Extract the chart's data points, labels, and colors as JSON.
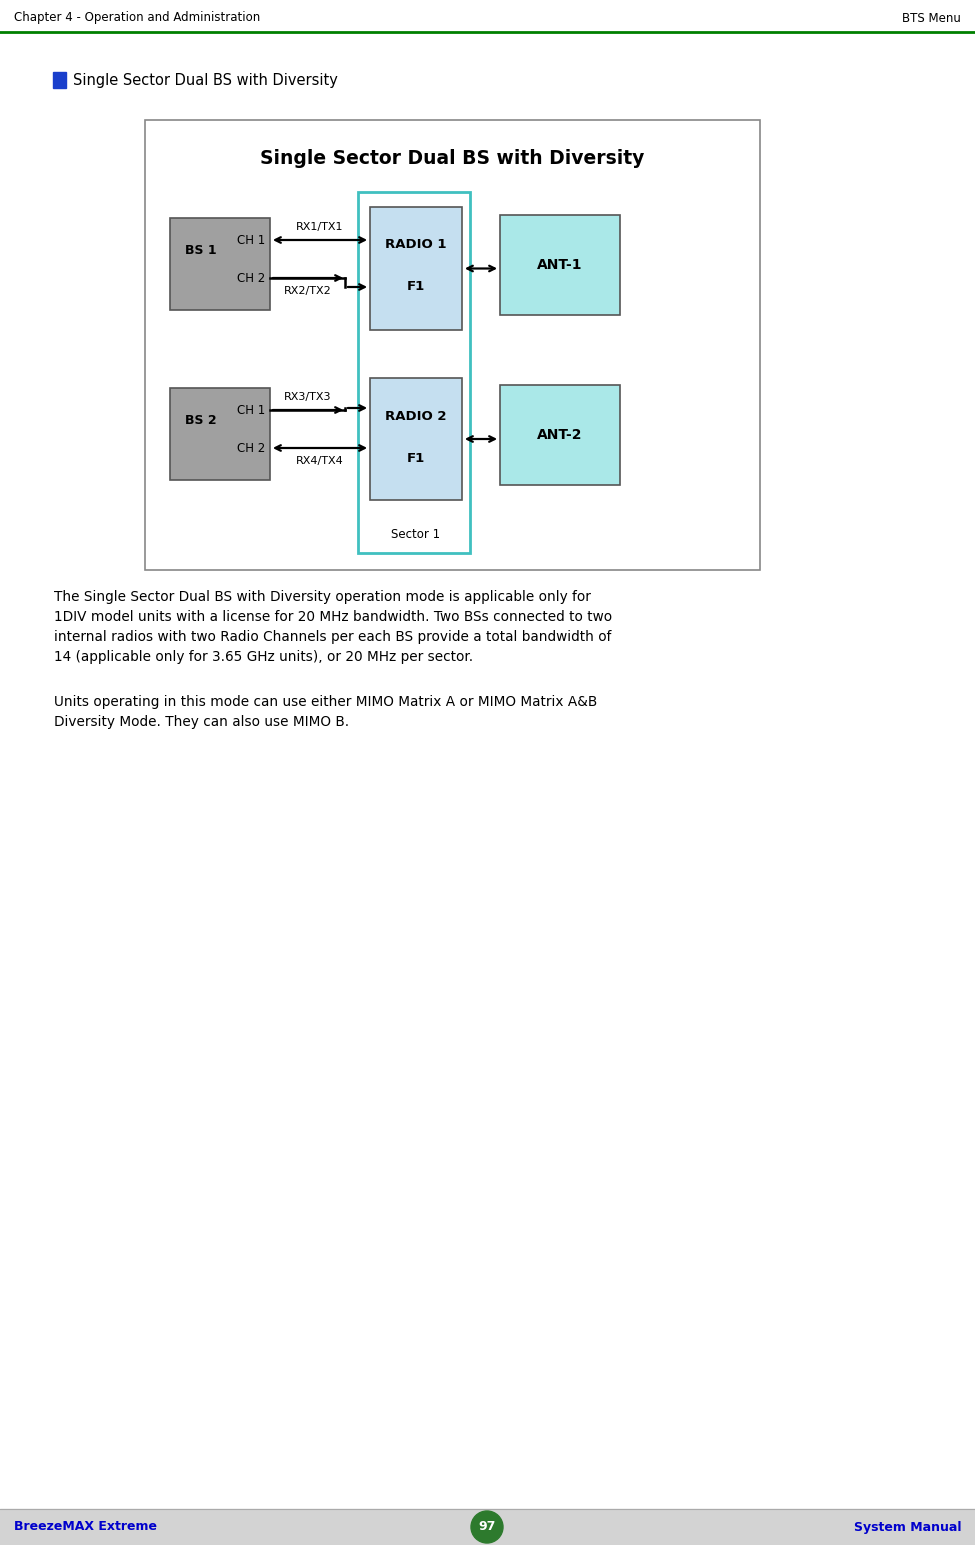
{
  "header_left": "Chapter 4 - Operation and Administration",
  "header_right": "BTS Menu",
  "footer_left": "BreezeMAX Extreme",
  "footer_center": "97",
  "footer_right": "System Manual",
  "bullet_text": "Single Sector Dual BS with Diversity",
  "diagram_title": "Single Sector Dual BS with Diversity",
  "header_line_color": "#008000",
  "footer_bg_color": "#d3d3d3",
  "footer_text_color": "#0000cc",
  "footer_circle_color": "#2d7a2d",
  "bullet_color": "#1a3fcc",
  "diagram_border_color": "#888888",
  "diagram_bg_color": "#ffffff",
  "bs_box_color": "#a0a0a0",
  "radio_box_color": "#c5dff0",
  "radio_outer_border_color": "#40c0c0",
  "ant_box_color": "#aae8e8",
  "body_text_1": "The Single Sector Dual BS with Diversity operation mode is applicable only for\n1DIV model units with a license for 20 MHz bandwidth. Two BSs connected to two\ninternal radios with two Radio Channels per each BS provide a total bandwidth of\n14 (applicable only for 3.65 GHz units), or 20 MHz per sector.",
  "body_text_2": "Units operating in this mode can use either MIMO Matrix A or MIMO Matrix A&B\nDiversity Mode. They can also use MIMO B."
}
